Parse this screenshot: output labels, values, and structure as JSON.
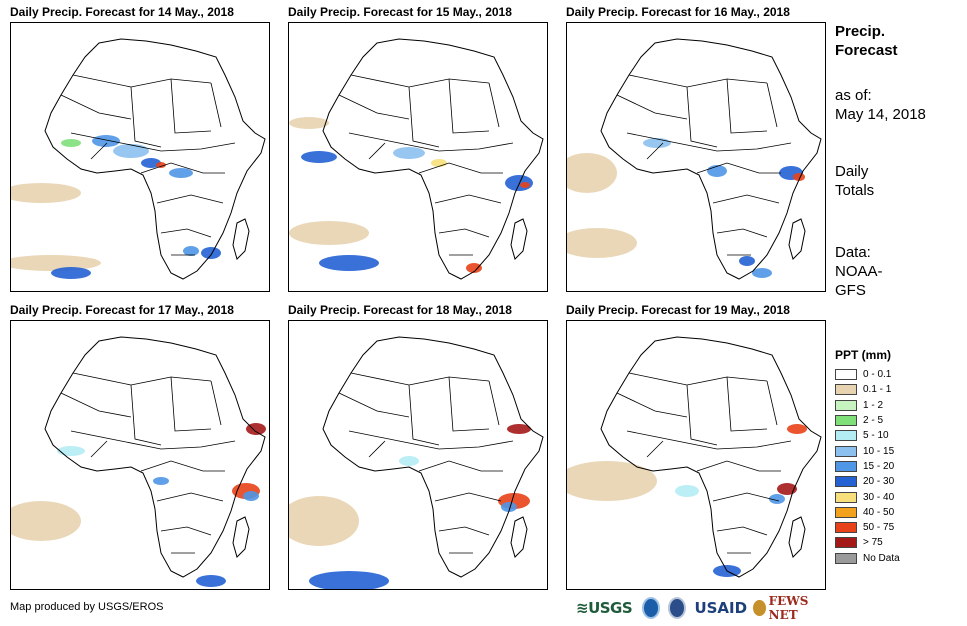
{
  "panels": [
    {
      "title": "Daily Precip. Forecast for 14 May., 2018"
    },
    {
      "title": "Daily Precip. Forecast for 15 May., 2018"
    },
    {
      "title": "Daily Precip. Forecast for 16 May., 2018"
    },
    {
      "title": "Daily Precip. Forecast for 17 May., 2018"
    },
    {
      "title": "Daily Precip. Forecast for 18 May., 2018"
    },
    {
      "title": "Daily Precip. Forecast for 19 May., 2018"
    }
  ],
  "sidebar": {
    "heading_line1": "Precip.",
    "heading_line2": "Forecast",
    "asof_line1": "as of:",
    "asof_line2": "May 14, 2018",
    "totals_line1": "Daily",
    "totals_line2": "Totals",
    "data_line1": "Data:",
    "data_line2": "NOAA-",
    "data_line3": "GFS"
  },
  "legend": {
    "title": "PPT (mm)",
    "items": [
      {
        "label": "0 - 0.1",
        "color": "#ffffff"
      },
      {
        "label": "0.1 - 1",
        "color": "#e8d3b0"
      },
      {
        "label": "1 - 2",
        "color": "#c7f3c0"
      },
      {
        "label": "2 - 5",
        "color": "#7fe07a"
      },
      {
        "label": "5 - 10",
        "color": "#b4ecf4"
      },
      {
        "label": "10 - 15",
        "color": "#8cc0ee"
      },
      {
        "label": "15 - 20",
        "color": "#4f96e6"
      },
      {
        "label": "20 - 30",
        "color": "#2462d4"
      },
      {
        "label": "30 - 40",
        "color": "#f7e07c"
      },
      {
        "label": "40 - 50",
        "color": "#f2a21c"
      },
      {
        "label": "50 - 75",
        "color": "#e8421a"
      },
      {
        "label": "> 75",
        "color": "#a51818"
      },
      {
        "label": "No Data",
        "color": "#9a9a9a"
      }
    ]
  },
  "footer": {
    "credit": "Map produced by USGS/EROS",
    "logo_usgs": "≋USGS",
    "logo_usaid": "USAID",
    "logo_fews": "FEWS NET"
  }
}
